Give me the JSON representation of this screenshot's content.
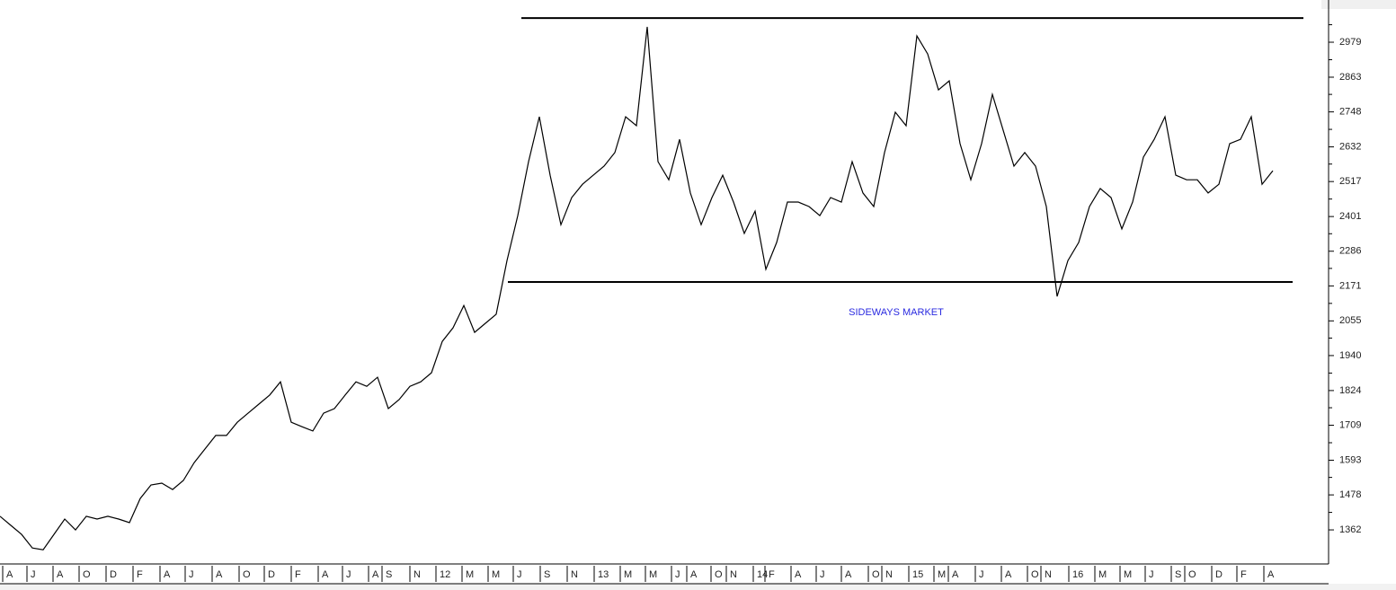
{
  "chart_data": {
    "type": "line",
    "annotation": "SIDEWAYS MARKET",
    "x_labels": [
      "A",
      "J",
      "A",
      "O",
      "D",
      "F",
      "A",
      "J",
      "A",
      "O",
      "D",
      "F",
      "A",
      "J",
      "A",
      "S",
      "N",
      "12",
      "M",
      "M",
      "J",
      "S",
      "N",
      "13",
      "M",
      "M",
      "J",
      "A",
      "O",
      "N",
      "14",
      "F",
      "A",
      "J",
      "A",
      "O",
      "N",
      "15",
      "M",
      "A",
      "J",
      "A",
      "O",
      "N",
      "16",
      "M",
      "M",
      "J",
      "S",
      "O",
      "D",
      "F",
      "A"
    ],
    "series": [
      {
        "color": "#000000",
        "values": [
          1407,
          1377,
          1347,
          1302,
          1296,
          1347,
          1398,
          1362,
          1407,
          1398,
          1407,
          1398,
          1386,
          1466,
          1511,
          1517,
          1496,
          1526,
          1585,
          1630,
          1675,
          1675,
          1719,
          1749,
          1779,
          1809,
          1853,
          1719,
          1704,
          1690,
          1749,
          1764,
          1809,
          1853,
          1838,
          1868,
          1764,
          1794,
          1838,
          1853,
          1883,
          1987,
          2032,
          2106,
          2017,
          2047,
          2077,
          2255,
          2404,
          2583,
          2732,
          2538,
          2374,
          2464,
          2508,
          2538,
          2568,
          2613,
          2732,
          2702,
          3030,
          2583,
          2523,
          2657,
          2479,
          2374,
          2464,
          2538,
          2449,
          2345,
          2419,
          2226,
          2315,
          2449,
          2449,
          2434,
          2404,
          2464,
          2449,
          2583,
          2479,
          2434,
          2613,
          2747,
          2702,
          3000,
          2940,
          2821,
          2851,
          2643,
          2523,
          2643,
          2806,
          2687,
          2568,
          2613,
          2568,
          2434,
          2136,
          2255,
          2315,
          2434,
          2494,
          2464,
          2360,
          2449,
          2598,
          2657,
          2732,
          2538,
          2523,
          2523,
          2479,
          2508,
          2643,
          2657,
          2732,
          2508,
          2553
        ]
      }
    ],
    "reference_lines": [
      3059,
      2184
    ],
    "ylim": [
      1249,
      3119
    ],
    "yticks": [
      2979,
      2863,
      2748,
      2632,
      2517,
      2401,
      2286,
      2171,
      2055,
      1940,
      1824,
      1709,
      1593,
      1478,
      1362
    ]
  }
}
